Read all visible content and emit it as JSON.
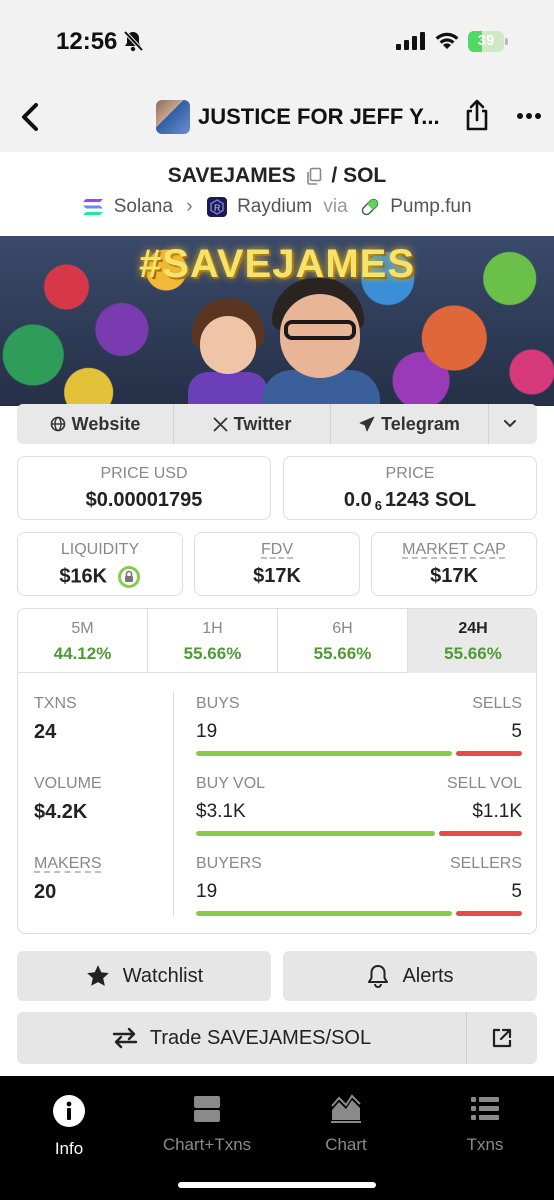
{
  "status_bar": {
    "time": "12:56",
    "battery": "39",
    "battery_level": 0.39
  },
  "nav": {
    "title": "JUSTICE FOR JEFF Y..."
  },
  "pair": {
    "base": "SAVEJAMES",
    "separator": "/",
    "quote": "SOL"
  },
  "chain": {
    "network": "Solana",
    "dex": "Raydium",
    "via": "via",
    "launchpad": "Pump.fun"
  },
  "banner": {
    "text": "#SAVEJAMES"
  },
  "links": {
    "website": "Website",
    "twitter": "Twitter",
    "telegram": "Telegram"
  },
  "stats": {
    "price_usd_label": "PRICE USD",
    "price_usd": "$0.00001795",
    "price_label": "PRICE",
    "price_prefix": "0.0",
    "price_sub": "6",
    "price_rest": "1243 SOL",
    "liquidity_label": "LIQUIDITY",
    "liquidity": "$16K",
    "fdv_label": "FDV",
    "fdv": "$17K",
    "mcap_label": "MARKET CAP",
    "mcap": "$17K"
  },
  "timeframes": [
    {
      "label": "5M",
      "value": "44.12%"
    },
    {
      "label": "1H",
      "value": "55.66%"
    },
    {
      "label": "6H",
      "value": "55.66%"
    },
    {
      "label": "24H",
      "value": "55.66%"
    }
  ],
  "activity": {
    "txns_label": "TXNS",
    "txns": "24",
    "buys_label": "BUYS",
    "buys": "19",
    "sells_label": "SELLS",
    "sells": "5",
    "buys_ratio": 0.79,
    "volume_label": "VOLUME",
    "volume": "$4.2K",
    "buy_vol_label": "BUY VOL",
    "buy_vol": "$3.1K",
    "sell_vol_label": "SELL VOL",
    "sell_vol": "$1.1K",
    "buy_vol_ratio": 0.74,
    "makers_label": "MAKERS",
    "makers": "20",
    "buyers_label": "BUYERS",
    "buyers": "19",
    "sellers_label": "SELLERS",
    "sellers": "5",
    "buyers_ratio": 0.79
  },
  "actions": {
    "watchlist": "Watchlist",
    "alerts": "Alerts",
    "trade": "Trade SAVEJAMES/SOL"
  },
  "tabbar": [
    {
      "label": "Info",
      "icon": "info-icon"
    },
    {
      "label": "Chart+Txns",
      "icon": "split-view-icon"
    },
    {
      "label": "Chart",
      "icon": "area-chart-icon"
    },
    {
      "label": "Txns",
      "icon": "list-icon"
    }
  ],
  "colors": {
    "positive": "#4f9a34",
    "buy_bar": "#8cc84b",
    "sell_bar": "#e84a4a"
  }
}
